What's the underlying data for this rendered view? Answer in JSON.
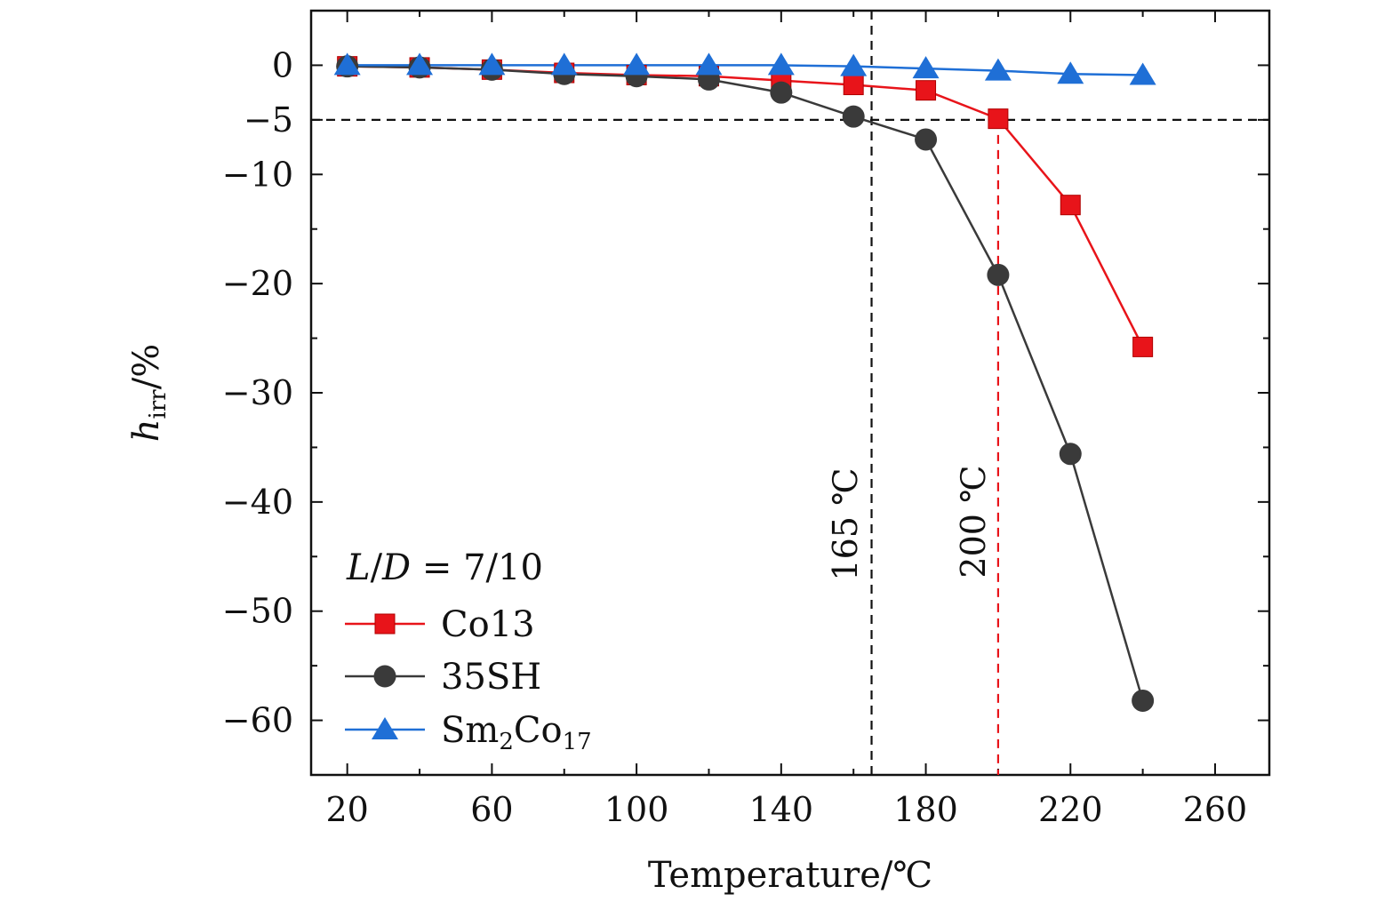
{
  "chart_data": {
    "type": "line",
    "title": "",
    "xlabel": "Temperature/℃",
    "ylabel": {
      "main": "h",
      "sub": "irr",
      "unit": "/%"
    },
    "xlim": [
      10,
      275
    ],
    "ylim": [
      -65,
      5
    ],
    "x_ticks": [
      20,
      60,
      100,
      140,
      180,
      220,
      260
    ],
    "y_ticks": [
      0,
      -5,
      -10,
      -20,
      -30,
      -40,
      -50,
      -60
    ],
    "y_tick_labels": [
      "0",
      "−5",
      "−10",
      "−20",
      "−30",
      "−40",
      "−50",
      "−60"
    ],
    "x": [
      20,
      40,
      60,
      80,
      100,
      120,
      140,
      160,
      180,
      200,
      220,
      240
    ],
    "series": [
      {
        "name": "Co13",
        "color": "#e8141a",
        "marker": "square",
        "values": [
          -0.1,
          -0.2,
          -0.4,
          -0.7,
          -0.9,
          -1.0,
          -1.4,
          -1.8,
          -2.3,
          -4.9,
          -12.8,
          -25.8
        ]
      },
      {
        "name": "35SH",
        "color": "#3a3a3a",
        "marker": "circle",
        "values": [
          -0.1,
          -0.2,
          -0.4,
          -0.8,
          -1.0,
          -1.3,
          -2.5,
          -4.7,
          -6.8,
          -19.2,
          -35.6,
          -58.2
        ]
      },
      {
        "name": "Sm2Co17",
        "color": "#1f6fd6",
        "marker": "triangle",
        "values": [
          0.0,
          0.0,
          0.0,
          0.0,
          0.0,
          0.0,
          0.0,
          -0.1,
          -0.3,
          -0.5,
          -0.8,
          -0.9
        ]
      }
    ],
    "reference_lines": [
      {
        "orientation": "horizontal",
        "value": -5,
        "color": "#111111"
      },
      {
        "orientation": "vertical",
        "value": 165,
        "color": "#111111",
        "label": "165 ℃"
      },
      {
        "orientation": "vertical",
        "value": 200,
        "color": "#e8141a",
        "label": "200 ℃"
      }
    ],
    "legend": {
      "position": "bottom-left",
      "header": {
        "italic_l": "L",
        "sep": "/",
        "italic_d": "D",
        "rest": " = 7/10"
      },
      "labels": [
        {
          "text": "Co13"
        },
        {
          "text": "35SH"
        },
        {
          "text": "Sm",
          "sub1": "2",
          "mid": "Co",
          "sub2": "17"
        }
      ]
    },
    "grid": false
  }
}
